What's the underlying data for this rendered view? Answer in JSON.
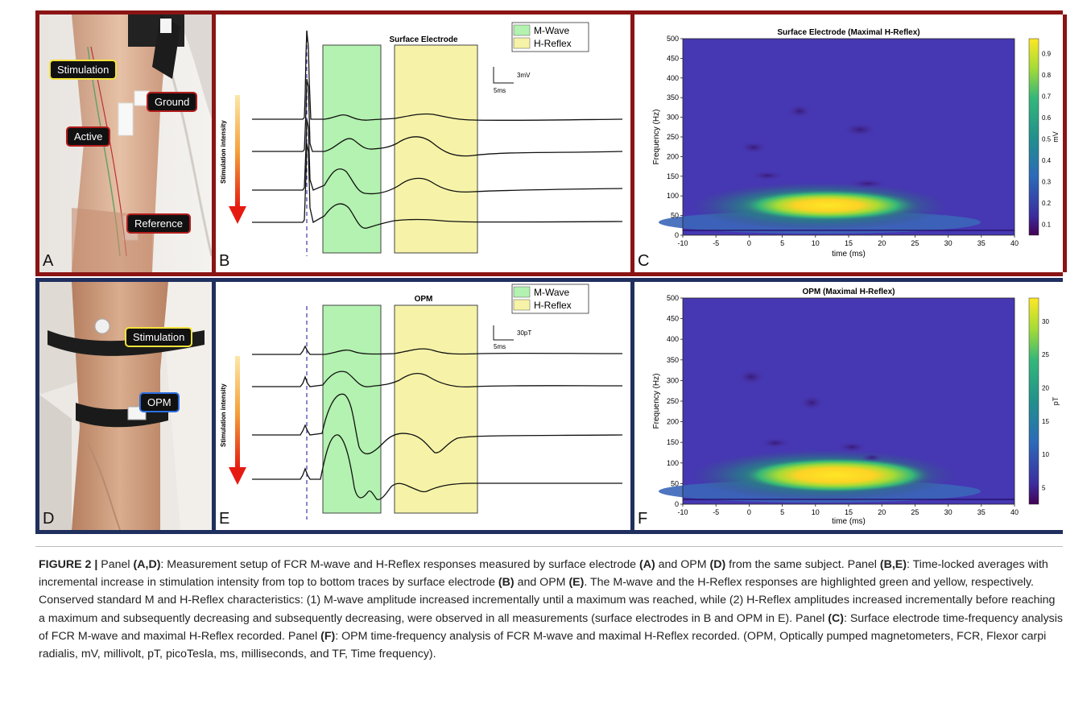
{
  "top": {
    "photo": {
      "letter": "A",
      "labels": {
        "stimulation": "Stimulation",
        "ground": "Ground",
        "active": "Active",
        "reference": "Reference"
      }
    },
    "trace": {
      "letter": "B",
      "title": "Surface Electrode",
      "legend": {
        "mwave": "M-Wave",
        "hreflex": "H-Reflex"
      },
      "scale": {
        "amp": "3mV",
        "time": "5ms"
      },
      "arrow_label": "Stimulation intensity"
    },
    "tf": {
      "letter": "C",
      "title": "Surface Electrode (Maximal H-Reflex)",
      "xlabel": "time (ms)",
      "ylabel": "Frequency (Hz)",
      "cbar_label": "mV",
      "xticks": [
        "-10",
        "-5",
        "0",
        "5",
        "10",
        "15",
        "20",
        "25",
        "30",
        "35",
        "40"
      ],
      "yticks": [
        "0",
        "50",
        "100",
        "150",
        "200",
        "250",
        "300",
        "350",
        "400",
        "450",
        "500"
      ],
      "cbar_ticks": [
        "0.1",
        "0.2",
        "0.3",
        "0.4",
        "0.5",
        "0.6",
        "0.7",
        "0.8",
        "0.9"
      ]
    }
  },
  "bottom": {
    "photo": {
      "letter": "D",
      "labels": {
        "stimulation": "Stimulation",
        "opm": "OPM"
      }
    },
    "trace": {
      "letter": "E",
      "title": "OPM",
      "legend": {
        "mwave": "M-Wave",
        "hreflex": "H-Reflex"
      },
      "scale": {
        "amp": "30pT",
        "time": "5ms"
      },
      "arrow_label": "Stimulation intensity"
    },
    "tf": {
      "letter": "F",
      "title": "OPM (Maximal H-Reflex)",
      "xlabel": "time (ms)",
      "ylabel": "Frequency (Hz)",
      "cbar_label": "pT",
      "xticks": [
        "-10",
        "-5",
        "0",
        "5",
        "10",
        "15",
        "20",
        "25",
        "30",
        "35",
        "40"
      ],
      "yticks": [
        "0",
        "50",
        "100",
        "150",
        "200",
        "250",
        "300",
        "350",
        "400",
        "450",
        "500"
      ],
      "cbar_ticks": [
        "5",
        "10",
        "15",
        "20",
        "25",
        "30"
      ]
    }
  },
  "caption": {
    "fig_label": "FIGURE 2",
    "sep": " | ",
    "p1_a": "Panel ",
    "p1_b": "(A,D)",
    "p1_c": ": Measurement setup of FCR M-wave and H-Reflex responses measured by surface electrode ",
    "p1_d": "(A)",
    "p1_e": " and OPM ",
    "p1_f": "(D)",
    "p1_g": " from the same subject. Panel ",
    "p1_h": "(B,E)",
    "p1_i": ": Time-locked averages with incremental increase in stimulation intensity from top to bottom traces by surface electrode ",
    "p1_j": "(B)",
    "p1_k": " and OPM ",
    "p1_l": "(E)",
    "p1_m": ". The M-wave and the H-Reflex responses are highlighted green and yellow, respectively. Conserved standard M and H-Reflex characteristics: (1) M-wave amplitude increased incrementally until a maximum was reached, while (2) H-Reflex amplitudes increased incrementally before reaching a maximum and subsequently decreasing and subsequently decreasing, were observed in all measurements (surface electrodes in B and OPM in E). Panel ",
    "p1_n": "(C)",
    "p1_o": ": Surface electrode time-frequency analysis of FCR M-wave and maximal H-Reflex recorded. Panel ",
    "p1_p": "(F)",
    "p1_q": ": OPM time-frequency analysis of FCR M-wave and maximal H-Reflex recorded. (OPM, Optically pumped magnetometers, FCR, Flexor carpi radialis, mV, millivolt, pT, picoTesla, ms, milliseconds, and TF, Time frequency)."
  },
  "colors": {
    "top_frame": "#8b1414",
    "bottom_frame": "#1f2f5e",
    "mwave_fill": "#b3f2b0",
    "hreflex_fill": "#f6f3a8"
  }
}
